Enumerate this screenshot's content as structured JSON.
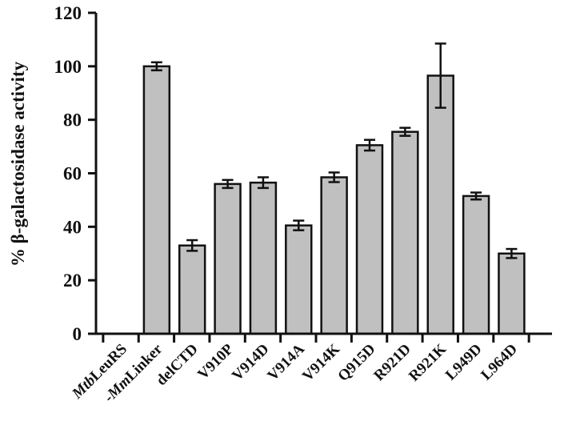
{
  "chart_data": {
    "type": "bar",
    "ylabel": "% β-galactosidase activity",
    "xlabel": "",
    "ylim": [
      0,
      120
    ],
    "yticks": [
      0,
      20,
      40,
      60,
      80,
      100,
      120
    ],
    "grid": false,
    "categories": [
      {
        "italic": "Mtb",
        "plain": "LeuRS"
      },
      {
        "italic": "Mm",
        "plain": "Linker",
        "prefix": "-"
      },
      {
        "italic": "",
        "plain": "delCTD"
      },
      {
        "italic": "",
        "plain": "V910P"
      },
      {
        "italic": "",
        "plain": "V914D"
      },
      {
        "italic": "",
        "plain": "V914A"
      },
      {
        "italic": "",
        "plain": "V914K"
      },
      {
        "italic": "",
        "plain": "Q915D"
      },
      {
        "italic": "",
        "plain": "R921D"
      },
      {
        "italic": "",
        "plain": "R921K"
      },
      {
        "italic": "",
        "plain": "L949D"
      },
      {
        "italic": "",
        "plain": "L964D"
      }
    ],
    "values": [
      0,
      100,
      33,
      56,
      56.5,
      40.5,
      58.5,
      70.5,
      75.5,
      96.5,
      51.5,
      30
    ],
    "errors": [
      0,
      1.5,
      2,
      1.5,
      2,
      1.8,
      1.8,
      2,
      1.5,
      12,
      1.3,
      1.7
    ],
    "bar_color": "#c0c0c0"
  }
}
